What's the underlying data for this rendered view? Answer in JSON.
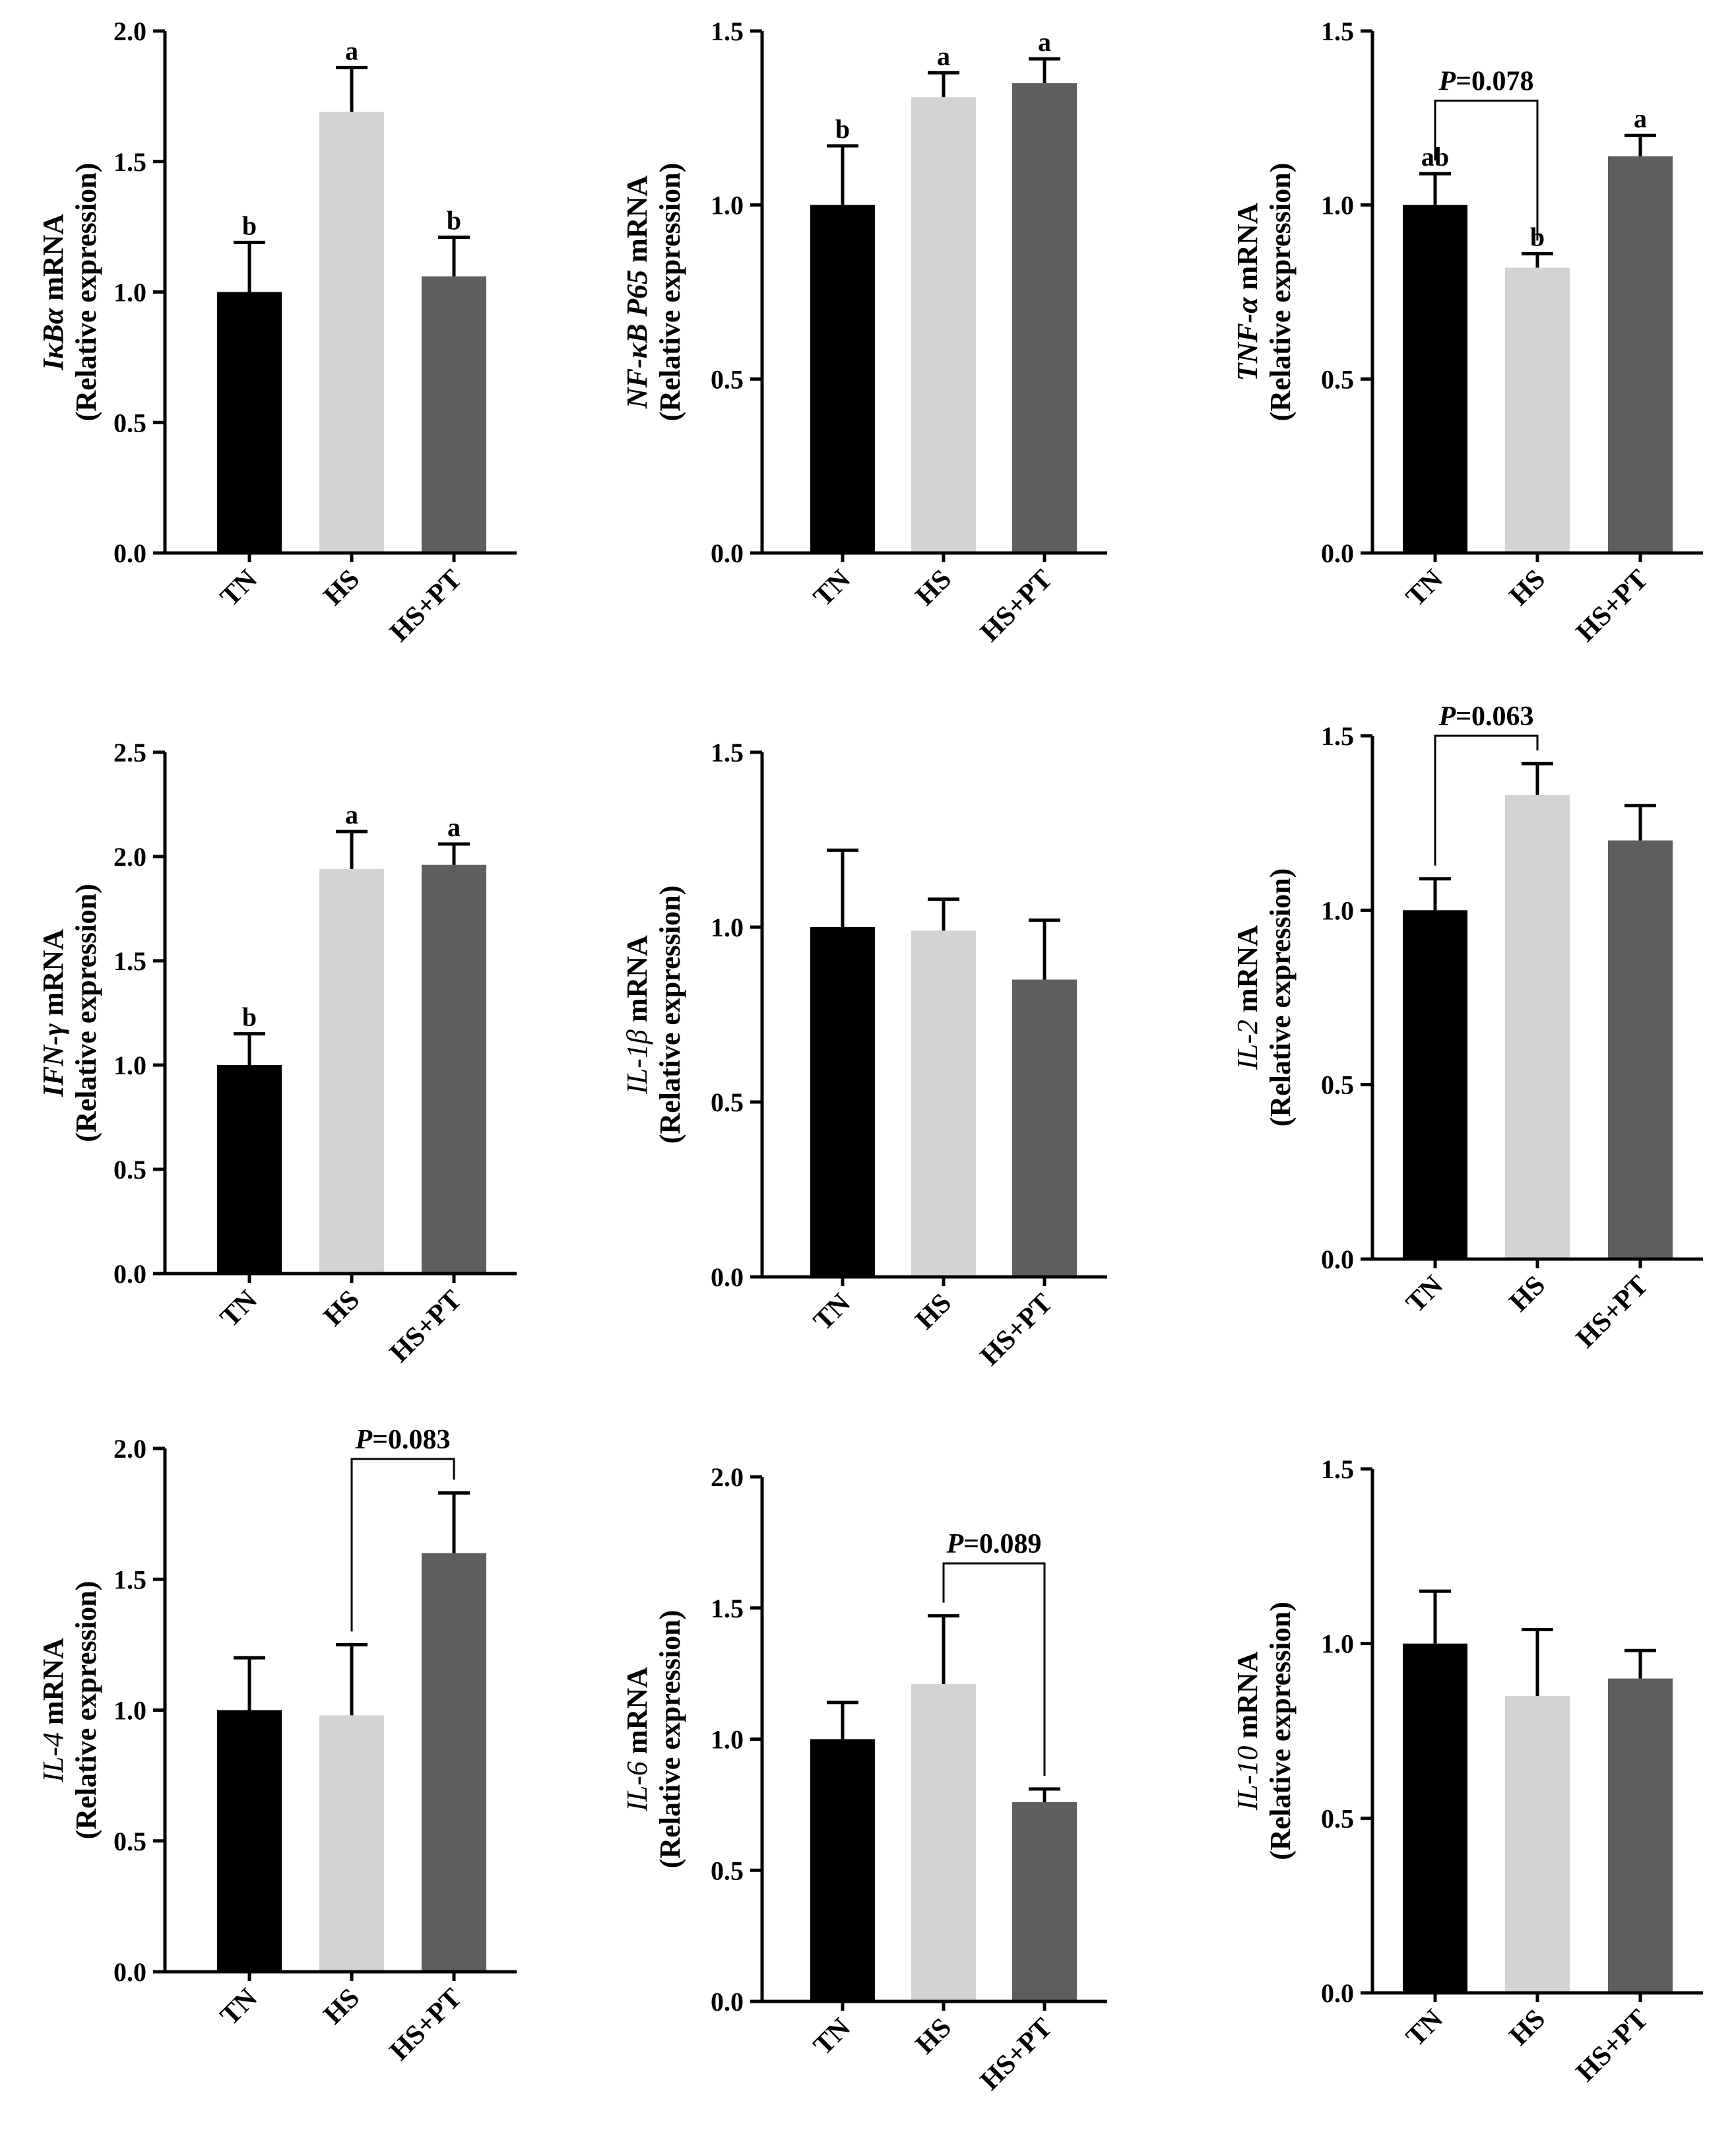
{
  "colors": {
    "TN": "#000000",
    "HS": "#d3d3d3",
    "HS+PT": "#5e5e5e",
    "axis": "#000000"
  },
  "chart_data": [
    {
      "type": "bar",
      "gene": "IκBα",
      "gene_italic": true,
      "gene_bold": true,
      "title_suffix": " mRNA",
      "subtitle": "(Relative expression)",
      "categories": [
        "TN",
        "HS",
        "HS+PT"
      ],
      "values": [
        1.0,
        1.69,
        1.06
      ],
      "errors": [
        0.19,
        0.17,
        0.15
      ],
      "letters": [
        "b",
        "a",
        "b"
      ],
      "ylim": [
        0,
        2.0
      ],
      "yticks": [
        "0.0",
        "0.5",
        "1.0",
        "1.5",
        "2.0"
      ],
      "comparison": null
    },
    {
      "type": "bar",
      "gene": "NF-κB P65",
      "gene_italic": true,
      "gene_bold": true,
      "title_suffix": " mRNA",
      "subtitle": "(Relative expression)",
      "categories": [
        "TN",
        "HS",
        "HS+PT"
      ],
      "values": [
        1.0,
        1.31,
        1.35
      ],
      "errors": [
        0.17,
        0.07,
        0.07
      ],
      "letters": [
        "b",
        "a",
        "a"
      ],
      "ylim": [
        0,
        1.5
      ],
      "yticks": [
        "0.0",
        "0.5",
        "1.0",
        "1.5"
      ],
      "comparison": null
    },
    {
      "type": "bar",
      "gene": "TNF-α",
      "gene_italic": true,
      "gene_bold": true,
      "title_suffix": " mRNA",
      "subtitle": "(Relative expression)",
      "categories": [
        "TN",
        "HS",
        "HS+PT"
      ],
      "values": [
        1.0,
        0.82,
        1.14
      ],
      "errors": [
        0.09,
        0.04,
        0.06
      ],
      "letters": [
        "ab",
        "b",
        "a"
      ],
      "ylim": [
        0,
        1.5
      ],
      "yticks": [
        "0.0",
        "0.5",
        "1.0",
        "1.5"
      ],
      "comparison": {
        "from": 0,
        "to": 1,
        "p_prefix": "P",
        "p_text": "=0.078",
        "y": 1.3
      }
    },
    {
      "type": "bar",
      "gene": "IFN-γ",
      "gene_italic": true,
      "gene_bold": true,
      "title_suffix": " mRNA",
      "subtitle": "(Relative expression)",
      "categories": [
        "TN",
        "HS",
        "HS+PT"
      ],
      "values": [
        1.0,
        1.94,
        1.96
      ],
      "errors": [
        0.15,
        0.18,
        0.1
      ],
      "letters": [
        "b",
        "a",
        "a"
      ],
      "ylim": [
        0,
        2.5
      ],
      "yticks": [
        "0.0",
        "0.5",
        "1.0",
        "1.5",
        "2.0",
        "2.5"
      ],
      "comparison": null
    },
    {
      "type": "bar",
      "gene": "IL-1β",
      "gene_italic": true,
      "gene_bold": false,
      "title_suffix": " mRNA",
      "subtitle": "(Relative expression)",
      "categories": [
        "TN",
        "HS",
        "HS+PT"
      ],
      "values": [
        1.0,
        0.99,
        0.85
      ],
      "errors": [
        0.22,
        0.09,
        0.17
      ],
      "letters": [
        "",
        "",
        ""
      ],
      "ylim": [
        0,
        1.5
      ],
      "yticks": [
        "0.0",
        "0.5",
        "1.0",
        "1.5"
      ],
      "comparison": null
    },
    {
      "type": "bar",
      "gene": "IL-2",
      "gene_italic": true,
      "gene_bold": false,
      "title_suffix": " mRNA",
      "subtitle": "(Relative expression)",
      "categories": [
        "TN",
        "HS",
        "HS+PT"
      ],
      "values": [
        1.0,
        1.33,
        1.2
      ],
      "errors": [
        0.09,
        0.09,
        0.1
      ],
      "letters": [
        "",
        "",
        ""
      ],
      "ylim": [
        0,
        1.5
      ],
      "yticks": [
        "0.0",
        "0.5",
        "1.0",
        "1.5"
      ],
      "comparison": {
        "from": 0,
        "to": 1,
        "p_prefix": "P",
        "p_text": "=0.063",
        "y": 1.5
      }
    },
    {
      "type": "bar",
      "gene": "IL-4",
      "gene_italic": true,
      "gene_bold": false,
      "title_suffix": " mRNA",
      "subtitle": "(Relative expression)",
      "categories": [
        "TN",
        "HS",
        "HS+PT"
      ],
      "values": [
        1.0,
        0.98,
        1.6
      ],
      "errors": [
        0.2,
        0.27,
        0.23
      ],
      "letters": [
        "",
        "",
        ""
      ],
      "ylim": [
        0,
        2.0
      ],
      "yticks": [
        "0.0",
        "0.5",
        "1.0",
        "1.5",
        "2.0"
      ],
      "comparison": {
        "from": 1,
        "to": 2,
        "p_prefix": "P",
        "p_text": "=0.083",
        "y": 1.96
      }
    },
    {
      "type": "bar",
      "gene": "IL-6",
      "gene_italic": true,
      "gene_bold": false,
      "title_suffix": " mRNA",
      "subtitle": "(Relative expression)",
      "categories": [
        "TN",
        "HS",
        "HS+PT"
      ],
      "values": [
        1.0,
        1.21,
        0.76
      ],
      "errors": [
        0.14,
        0.26,
        0.05
      ],
      "letters": [
        "",
        "",
        ""
      ],
      "ylim": [
        0,
        2.0
      ],
      "yticks": [
        "0.0",
        "0.5",
        "1.0",
        "1.5",
        "2.0"
      ],
      "comparison": {
        "from": 1,
        "to": 2,
        "p_prefix": "P",
        "p_text": "=0.089",
        "y": 1.67
      }
    },
    {
      "type": "bar",
      "gene": "IL-10",
      "gene_italic": true,
      "gene_bold": false,
      "title_suffix": " mRNA",
      "subtitle": "(Relative expression)",
      "categories": [
        "TN",
        "HS",
        "HS+PT"
      ],
      "values": [
        1.0,
        0.85,
        0.9
      ],
      "errors": [
        0.15,
        0.19,
        0.08
      ],
      "letters": [
        "",
        "",
        ""
      ],
      "ylim": [
        0,
        1.5
      ],
      "yticks": [
        "0.0",
        "0.5",
        "1.0",
        "1.5"
      ],
      "comparison": null
    }
  ]
}
